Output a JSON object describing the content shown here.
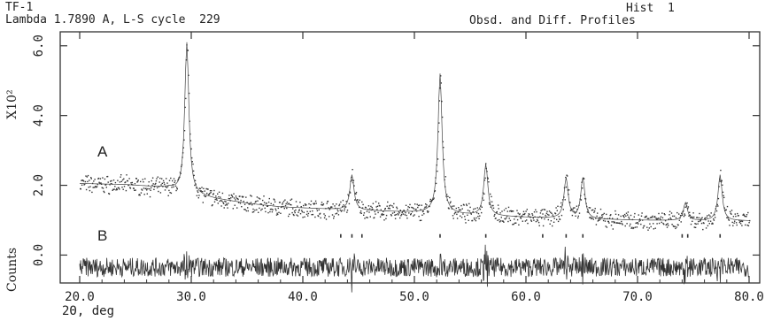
{
  "header": {
    "sample": "TF-1",
    "lambda_line": "Lambda 1.7890 A, L-S cycle  229",
    "hist": "Hist  1",
    "profile_title": "Obsd. and Diff. Profiles"
  },
  "chart_data": {
    "type": "scatter",
    "x": {
      "label": "2Θ, deg",
      "range": [
        20.0,
        80.0
      ],
      "ticks": [
        20.0,
        30.0,
        40.0,
        50.0,
        60.0,
        70.0,
        80.0
      ],
      "tick_labels": [
        "20.0",
        "30.0",
        "40.0",
        "50.0",
        "60.0",
        "70.0",
        "80.0"
      ]
    },
    "y": {
      "label": "Counts",
      "multiplier_label": "X10²",
      "range": [
        -0.8,
        6.4
      ],
      "ticks": [
        0.0,
        2.0,
        4.0,
        6.0
      ],
      "tick_labels": [
        "0.0",
        "2.0",
        "4.0",
        "6.0"
      ]
    },
    "grid": false,
    "series": [
      {
        "name": "A",
        "kind": "observed",
        "baseline": [
          [
            20.0,
            2.05
          ],
          [
            24.0,
            2.02
          ],
          [
            28.0,
            1.92
          ],
          [
            29.0,
            1.78
          ],
          [
            32.0,
            1.62
          ],
          [
            35.0,
            1.48
          ],
          [
            38.0,
            1.38
          ],
          [
            42.0,
            1.32
          ],
          [
            46.0,
            1.27
          ],
          [
            50.0,
            1.22
          ],
          [
            52.0,
            1.2
          ],
          [
            55.0,
            1.14
          ],
          [
            60.0,
            1.08
          ],
          [
            65.0,
            1.03
          ],
          [
            70.0,
            1.0
          ],
          [
            75.0,
            0.98
          ],
          [
            80.0,
            0.98
          ]
        ],
        "peaks": [
          {
            "x": 29.6,
            "height": 6.1
          },
          {
            "x": 44.4,
            "height": 2.3
          },
          {
            "x": 52.3,
            "height": 5.2
          },
          {
            "x": 56.4,
            "height": 2.6
          },
          {
            "x": 63.6,
            "height": 2.2
          },
          {
            "x": 65.1,
            "height": 2.2
          },
          {
            "x": 74.3,
            "height": 1.5
          },
          {
            "x": 77.4,
            "height": 2.3
          }
        ]
      },
      {
        "name": "B",
        "kind": "difference",
        "level": -0.35
      }
    ],
    "reflection_marks": [
      43.4,
      44.4,
      45.3,
      52.3,
      56.4,
      61.5,
      63.6,
      65.1,
      74.0,
      74.5,
      77.4
    ],
    "reflection_mark_level": 0.55,
    "annotations": [
      "A",
      "B"
    ]
  }
}
